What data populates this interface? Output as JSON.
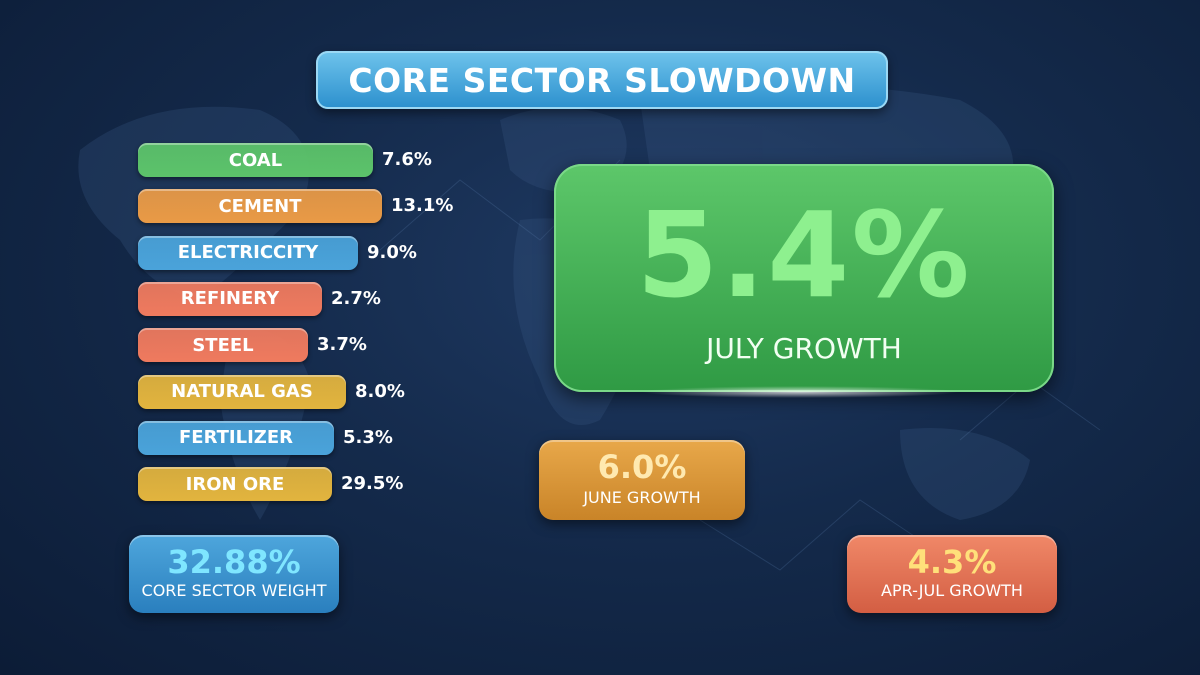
{
  "colors": {
    "green": "#5cc36a",
    "orange": "#e99a46",
    "blue": "#4aa3da",
    "coral": "#ef7a5e",
    "gold": "#e2b43e",
    "highlight_green": "#8ef08f",
    "highlight_cyan": "#7fe6ff",
    "highlight_yellow": "#ffe07a",
    "highlight_pale": "#ffe9b0"
  },
  "chart_data": {
    "type": "bar",
    "title": "CORE SECTOR SLOWDOWN",
    "categories": [
      "COAL",
      "CEMENT",
      "ELECTRICCITY",
      "REFINERY",
      "STEEL",
      "NATURAL GAS",
      "FERTILIZER",
      "IRON ORE"
    ],
    "value_labels": [
      "7.6%",
      "13.1%",
      "9.0%",
      "2.7%",
      "3.7%",
      "8.0%",
      "5.3%",
      "29.5%"
    ],
    "values": [
      7.6,
      13.1,
      9.0,
      2.7,
      3.7,
      8.0,
      5.3,
      29.5
    ],
    "bar_colors": [
      "green",
      "orange",
      "blue",
      "coral",
      "coral",
      "gold",
      "blue",
      "gold"
    ]
  },
  "headline": {
    "value": "5.4%",
    "label": "JULY GROWTH"
  },
  "cards": {
    "weight": {
      "value": "32.88%",
      "label": "CORE SECTOR WEIGHT"
    },
    "june": {
      "value": "6.0%",
      "label": "JUNE GROWTH"
    },
    "apr_jul": {
      "value": "4.3%",
      "label": "APR-JUL GROWTH"
    }
  }
}
